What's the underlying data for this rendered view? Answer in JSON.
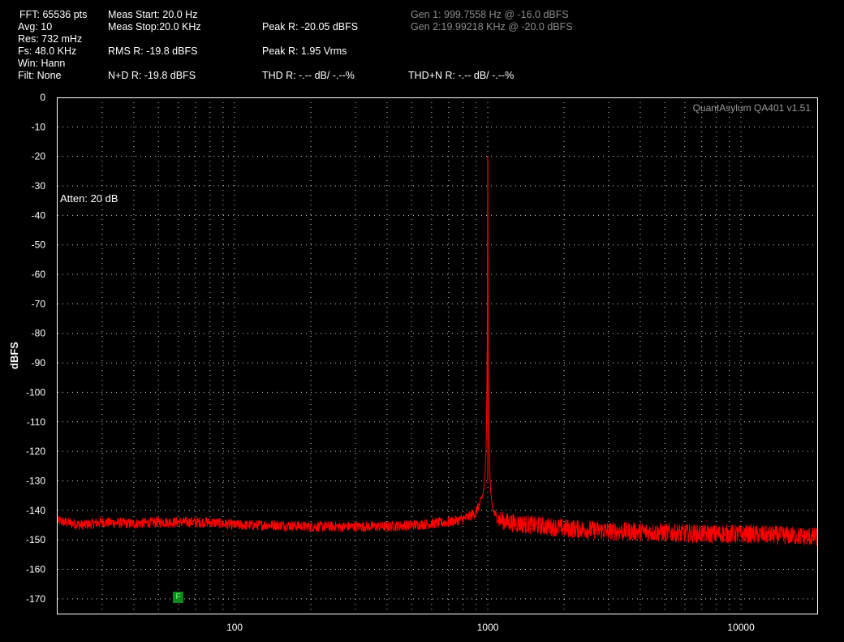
{
  "header": {
    "fft": "FFT: 65536 pts",
    "avg": "Avg: 10",
    "res": "Res: 732 mHz",
    "fs": "Fs: 48.0 KHz",
    "win": "Win: Hann",
    "filt": "Filt: None",
    "meas_start": "Meas Start: 20.0 Hz",
    "meas_stop": "Meas Stop:20.0 KHz",
    "rms": "RMS R: -19.8 dBFS",
    "nd": "N+D R: -19.8 dBFS",
    "peak_db": "Peak R: -20.05 dBFS",
    "peak_v": "Peak R: 1.95 Vrms",
    "thd": "THD R: -.-- dB/ -.--%",
    "thdn": "THD+N R: -.-- dB/ -.--%",
    "gen1": "Gen 1: 999.7558 Hz @ -16.0  dBFS",
    "gen2": "Gen 2:19.99218 KHz @ -20.0  dBFS"
  },
  "watermark": "QuantAsylum QA401 v1.51",
  "atten": "Atten: 20 dB",
  "marker_label": "F",
  "colors": {
    "trace": "#ff0000",
    "grid": "#d0d0d0",
    "background": "#000000",
    "frame": "#ffffff"
  },
  "chart_data": {
    "type": "line",
    "xlabel": "",
    "ylabel": "dBFS",
    "xscale": "log",
    "xlim": [
      20,
      20000
    ],
    "ylim": [
      -175,
      0
    ],
    "x_ticks": [
      100,
      1000,
      10000
    ],
    "x_tick_labels": [
      "100",
      "1000",
      "10000"
    ],
    "y_ticks": [
      0,
      -10,
      -20,
      -30,
      -40,
      -50,
      -60,
      -70,
      -80,
      -90,
      -100,
      -110,
      -120,
      -130,
      -140,
      -150,
      -160,
      -170
    ],
    "y_tick_labels": [
      "0",
      "-10",
      "-20",
      "-30",
      "-40",
      "-50",
      "-60",
      "-70",
      "-80",
      "-90",
      "-100",
      "-110",
      "-120",
      "-130",
      "-140",
      "-150",
      "-160",
      "-170"
    ],
    "grid": true,
    "series": [
      {
        "x": [
          20,
          25,
          30,
          40,
          50,
          60,
          80,
          100,
          150,
          200,
          300,
          400,
          500,
          600,
          700,
          800,
          850,
          900,
          940,
          960,
          975,
          985,
          992,
          996,
          999.76,
          1004,
          1008,
          1015,
          1025,
          1040,
          1060,
          1100,
          1200,
          1500,
          2000,
          3000,
          5000,
          7000,
          10000,
          15000,
          20000
        ],
        "values": [
          -143.5,
          -145,
          -144,
          -144.5,
          -144,
          -144,
          -144,
          -145,
          -145,
          -145.5,
          -145.5,
          -145.5,
          -145,
          -144.5,
          -144,
          -143,
          -142,
          -140.5,
          -137,
          -134,
          -128,
          -118,
          -100,
          -75,
          -20.05,
          -80,
          -108,
          -124,
          -133,
          -138,
          -141,
          -143,
          -144,
          -145,
          -146,
          -147,
          -147.5,
          -148,
          -148,
          -148.5,
          -149
        ]
      }
    ],
    "markers": [
      {
        "label": "F",
        "x": 60,
        "y": -170
      }
    ]
  }
}
